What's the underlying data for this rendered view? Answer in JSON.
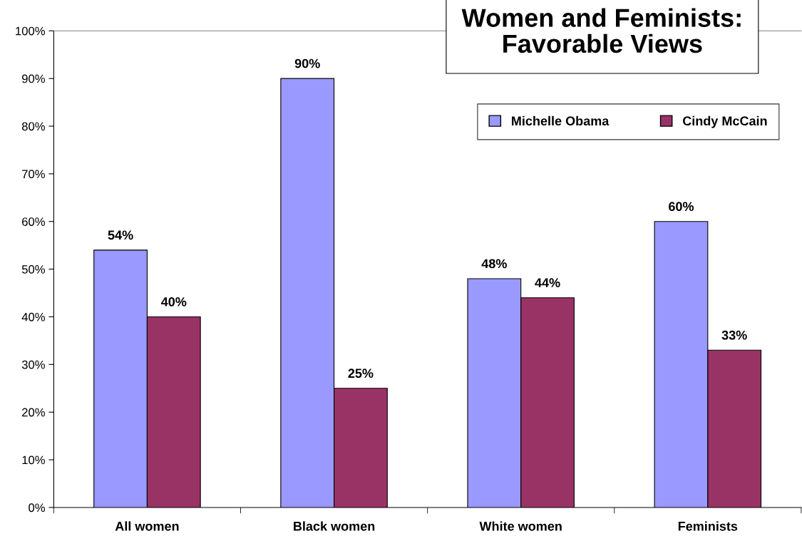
{
  "chart_data": {
    "type": "bar",
    "title": "Women and Feminists:\nFavorable Views",
    "categories": [
      "All women",
      "Black women",
      "White women",
      "Feminists"
    ],
    "series": [
      {
        "name": "Michelle Obama",
        "color": "#9999ff",
        "values": [
          54,
          90,
          48,
          60
        ],
        "value_labels": [
          "54%",
          "90%",
          "48%",
          "60%"
        ]
      },
      {
        "name": "Cindy McCain",
        "color": "#993366",
        "values": [
          40,
          25,
          44,
          33
        ],
        "value_labels": [
          "40%",
          "25%",
          "44%",
          "33%"
        ]
      }
    ],
    "ylim": [
      0,
      100
    ],
    "yticks": [
      {
        "value": 0,
        "label": "0%"
      },
      {
        "value": 10,
        "label": "10%"
      },
      {
        "value": 20,
        "label": "20%"
      },
      {
        "value": 30,
        "label": "30%"
      },
      {
        "value": 40,
        "label": "40%"
      },
      {
        "value": 50,
        "label": "50%"
      },
      {
        "value": 60,
        "label": "60%"
      },
      {
        "value": 70,
        "label": "70%"
      },
      {
        "value": 80,
        "label": "80%"
      },
      {
        "value": 90,
        "label": "90%"
      },
      {
        "value": 100,
        "label": "100%"
      }
    ],
    "legend": "top right",
    "grid": false
  }
}
